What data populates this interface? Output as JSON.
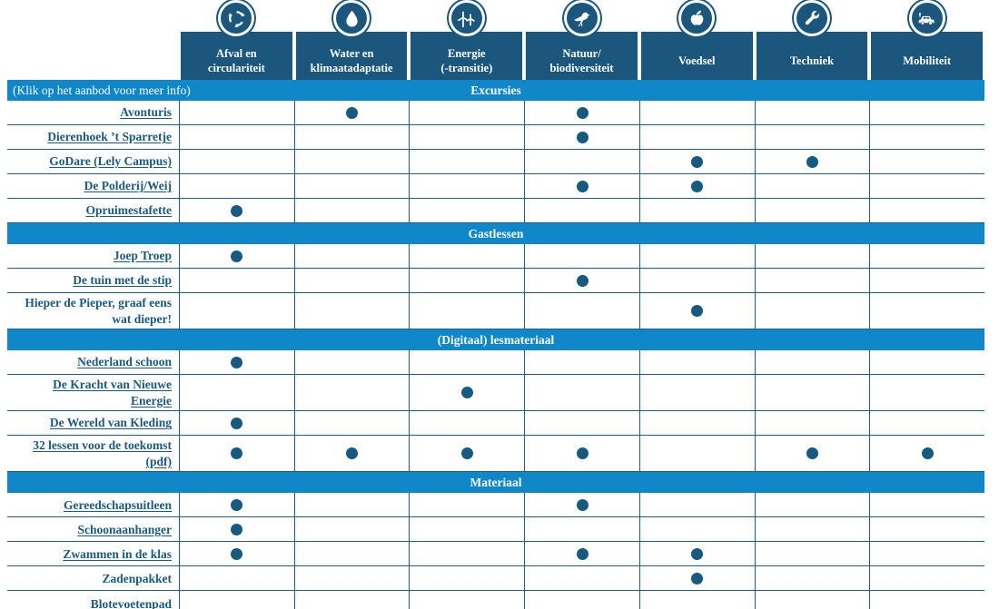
{
  "colors": {
    "header_bg": "#1B567C",
    "section_band_bg": "#0F87C8",
    "grid_line": "#1D5F86",
    "label_text": "#1B5B82",
    "dot": "#175A80",
    "header_text": "#FFFFFF"
  },
  "header": {
    "columns": [
      {
        "label": "Afval en\ncirculariteit",
        "icon": "recycle-icon"
      },
      {
        "label": "Water en\nklimaatadaptatie",
        "icon": "water-drop-icon"
      },
      {
        "label": "Energie\n(-transitie)",
        "icon": "wind-turbine-icon"
      },
      {
        "label": "Natuur/\nbiodiversiteit",
        "icon": "bird-icon"
      },
      {
        "label": "Voedsel",
        "icon": "apple-icon"
      },
      {
        "label": "Techniek",
        "icon": "wrench-icon"
      },
      {
        "label": "Mobiliteit",
        "icon": "electric-car-icon"
      }
    ]
  },
  "note": "(Klik op het aanbod voor meer info)",
  "sections": [
    {
      "title": "Excursies",
      "rows": [
        {
          "label": "Avonturis",
          "link": true,
          "dots": [
            1,
            3
          ]
        },
        {
          "label": "Dierenhoek ’t Sparretje",
          "link": true,
          "dots": [
            3
          ]
        },
        {
          "label": "GoDare (Lely Campus)",
          "link": true,
          "dots": [
            4,
            5
          ]
        },
        {
          "label": "De Polderij/Weij",
          "link": true,
          "dots": [
            3,
            4
          ]
        },
        {
          "label": "Opruimestafette",
          "link": true,
          "dots": [
            0
          ]
        }
      ]
    },
    {
      "title": "Gastlessen",
      "rows": [
        {
          "label": "Joep Troep",
          "link": true,
          "dots": [
            0
          ]
        },
        {
          "label": "De tuin met de stip",
          "link": true,
          "dots": [
            3
          ]
        },
        {
          "label": "Hieper de Pieper, graaf eens wat dieper!",
          "link": false,
          "dots": [
            4
          ]
        }
      ]
    },
    {
      "title": "(Digitaal) lesmateriaal",
      "rows": [
        {
          "label": "Nederland schoon",
          "link": true,
          "dots": [
            0
          ]
        },
        {
          "label": "De Kracht van Nieuwe Energie",
          "link": true,
          "dots": [
            2
          ]
        },
        {
          "label": "De Wereld van Kleding",
          "link": true,
          "dots": [
            0
          ]
        },
        {
          "label": "32 lessen voor de toekomst (pdf)",
          "link": true,
          "dots": [
            0,
            1,
            2,
            3,
            5,
            6
          ]
        }
      ]
    },
    {
      "title": "Materiaal",
      "rows": [
        {
          "label": "Gereedschapsuitleen",
          "link": true,
          "dots": [
            0,
            3
          ]
        },
        {
          "label": "Schoonaanhanger",
          "link": true,
          "dots": [
            0
          ]
        },
        {
          "label": "Zwammen in de klas",
          "link": true,
          "dots": [
            0,
            3,
            4
          ]
        },
        {
          "label": "Zadenpakket",
          "link": false,
          "dots": [
            4
          ]
        },
        {
          "label": "Blotevoetenpad",
          "link": true,
          "dots": []
        }
      ]
    }
  ]
}
